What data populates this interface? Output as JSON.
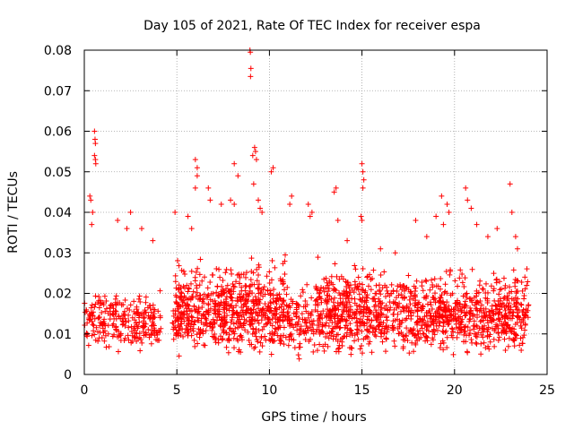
{
  "chart_data": {
    "type": "scatter",
    "title": "Day 105 of 2021, Rate Of TEC Index for receiver espa",
    "xlabel": "GPS time / hours",
    "ylabel": "ROTI / TECUs",
    "xlim": [
      0,
      25
    ],
    "ylim": [
      0,
      0.08
    ],
    "x_ticks": [
      0,
      5,
      10,
      15,
      20,
      25
    ],
    "y_ticks": [
      0,
      0.01,
      0.02,
      0.03,
      0.04,
      0.05,
      0.06,
      0.07,
      0.08
    ],
    "x_tick_labels": [
      "0",
      "5",
      "10",
      "15",
      "20",
      "25"
    ],
    "y_tick_labels": [
      "0",
      "0.01",
      "0.02",
      "0.03",
      "0.04",
      "0.05",
      "0.06",
      "0.07",
      "0.08"
    ],
    "grid": true,
    "marker": "+",
    "color": "#ff0000",
    "series": [
      {
        "name": "ROTI",
        "note": "dense background cloud approximated by envelope bands [x_start, x_end, y_low, y_high, density]",
        "bands": [
          [
            0.0,
            4.15,
            0.004,
            0.022,
            260
          ],
          [
            4.75,
            24.0,
            0.003,
            0.024,
            1400
          ],
          [
            4.9,
            11.0,
            0.008,
            0.032,
            260
          ],
          [
            12.5,
            15.5,
            0.01,
            0.03,
            120
          ],
          [
            15.5,
            24.0,
            0.01,
            0.028,
            200
          ]
        ],
        "points": [
          [
            0.3,
            0.044
          ],
          [
            0.35,
            0.043
          ],
          [
            0.4,
            0.037
          ],
          [
            0.45,
            0.04
          ],
          [
            0.55,
            0.06
          ],
          [
            0.58,
            0.058
          ],
          [
            0.6,
            0.057
          ],
          [
            0.55,
            0.054
          ],
          [
            0.6,
            0.053
          ],
          [
            0.62,
            0.052
          ],
          [
            1.8,
            0.038
          ],
          [
            2.5,
            0.04
          ],
          [
            2.3,
            0.036
          ],
          [
            3.1,
            0.036
          ],
          [
            3.7,
            0.033
          ],
          [
            4.9,
            0.04
          ],
          [
            5.6,
            0.039
          ],
          [
            5.8,
            0.036
          ],
          [
            6.0,
            0.046
          ],
          [
            6.1,
            0.049
          ],
          [
            6.0,
            0.053
          ],
          [
            6.1,
            0.051
          ],
          [
            6.7,
            0.046
          ],
          [
            6.8,
            0.043
          ],
          [
            7.4,
            0.042
          ],
          [
            7.9,
            0.043
          ],
          [
            8.1,
            0.042
          ],
          [
            8.3,
            0.049
          ],
          [
            8.1,
            0.052
          ],
          [
            8.95,
            0.08
          ],
          [
            8.97,
            0.0795
          ],
          [
            9.0,
            0.0755
          ],
          [
            8.98,
            0.0735
          ],
          [
            9.2,
            0.056
          ],
          [
            9.25,
            0.055
          ],
          [
            9.1,
            0.054
          ],
          [
            9.3,
            0.053
          ],
          [
            9.15,
            0.047
          ],
          [
            9.4,
            0.043
          ],
          [
            9.5,
            0.041
          ],
          [
            9.6,
            0.04
          ],
          [
            10.2,
            0.051
          ],
          [
            10.1,
            0.05
          ],
          [
            11.2,
            0.044
          ],
          [
            11.1,
            0.042
          ],
          [
            12.1,
            0.042
          ],
          [
            12.3,
            0.04
          ],
          [
            12.2,
            0.039
          ],
          [
            13.6,
            0.046
          ],
          [
            13.5,
            0.045
          ],
          [
            13.7,
            0.038
          ],
          [
            14.2,
            0.033
          ],
          [
            15.0,
            0.052
          ],
          [
            15.05,
            0.05
          ],
          [
            15.1,
            0.048
          ],
          [
            15.05,
            0.046
          ],
          [
            14.95,
            0.039
          ],
          [
            15.0,
            0.038
          ],
          [
            16.0,
            0.031
          ],
          [
            16.8,
            0.03
          ],
          [
            17.9,
            0.038
          ],
          [
            18.5,
            0.034
          ],
          [
            19.3,
            0.044
          ],
          [
            19.6,
            0.042
          ],
          [
            19.7,
            0.04
          ],
          [
            19.0,
            0.039
          ],
          [
            19.4,
            0.037
          ],
          [
            20.6,
            0.046
          ],
          [
            20.7,
            0.043
          ],
          [
            20.9,
            0.041
          ],
          [
            21.2,
            0.037
          ],
          [
            21.8,
            0.034
          ],
          [
            22.3,
            0.036
          ],
          [
            23.0,
            0.047
          ],
          [
            23.1,
            0.04
          ],
          [
            23.3,
            0.034
          ],
          [
            23.4,
            0.031
          ],
          [
            23.8,
            0.024
          ],
          [
            23.9,
            0.022
          ]
        ]
      }
    ]
  }
}
